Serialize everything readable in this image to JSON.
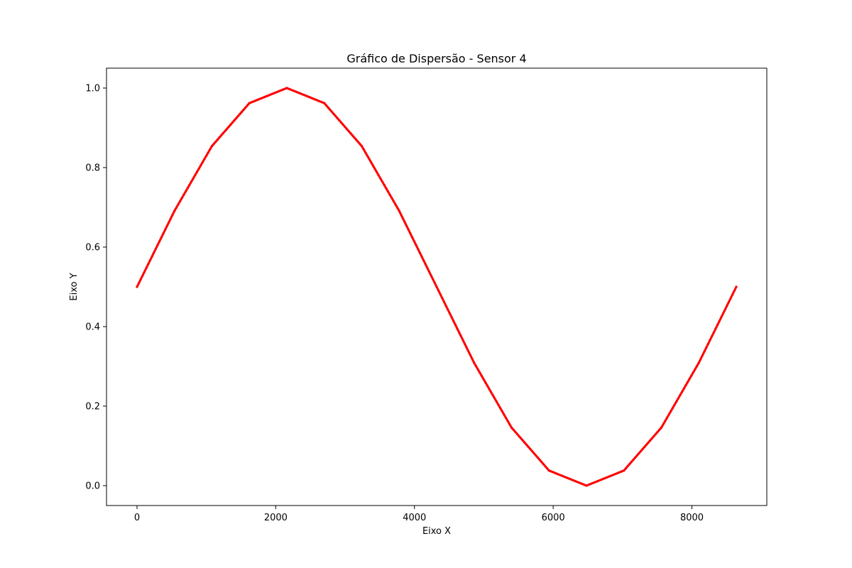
{
  "chart_data": {
    "type": "scatter",
    "title": "Gráfico de Dispersão - Sensor 4",
    "xlabel": "Eixo X",
    "ylabel": "Eixo Y",
    "xlim": [
      -440,
      9080
    ],
    "ylim": [
      -0.05,
      1.05
    ],
    "xticks": [
      0,
      2000,
      4000,
      6000,
      8000
    ],
    "xtick_labels": [
      "0",
      "2000",
      "4000",
      "6000",
      "8000"
    ],
    "yticks": [
      0.0,
      0.2,
      0.4,
      0.6,
      0.8,
      1.0
    ],
    "ytick_labels": [
      "0.0",
      "0.2",
      "0.4",
      "0.6",
      "0.8",
      "1.0"
    ],
    "grid": false,
    "marker_color": "#ff0000",
    "series": [
      {
        "x": [
          0,
          540,
          1080,
          1620,
          2160,
          2700,
          3240,
          3780,
          4320,
          4860,
          5400,
          5940,
          6480,
          7020,
          7560,
          8100,
          8640
        ],
        "y": [
          0.5,
          0.691,
          0.854,
          0.962,
          1.0,
          0.962,
          0.854,
          0.691,
          0.5,
          0.309,
          0.146,
          0.038,
          0.0,
          0.038,
          0.146,
          0.309,
          0.5
        ]
      }
    ]
  }
}
